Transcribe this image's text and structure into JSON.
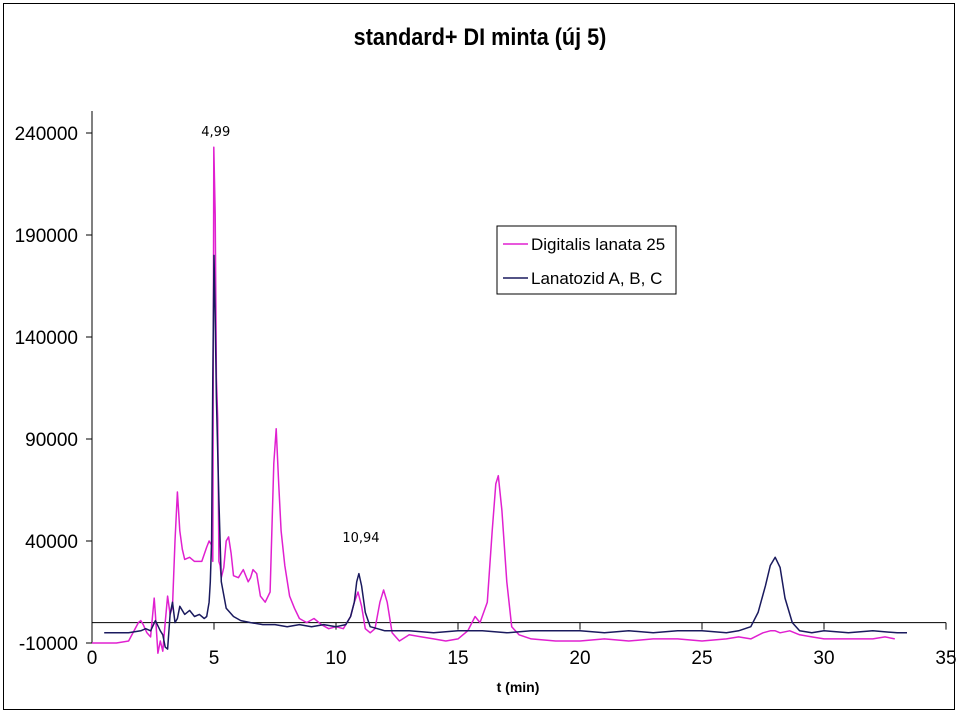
{
  "chart_data": {
    "type": "line",
    "title": "standard+ DI minta (új 5)",
    "xlabel": "t (min)",
    "ylabel": "",
    "xlim": [
      0,
      35
    ],
    "ylim": [
      -10000,
      240000
    ],
    "x_ticks": [
      "0",
      "5",
      "10",
      "15",
      "20",
      "25",
      "30",
      "35"
    ],
    "y_ticks": [
      "-10000",
      "40000",
      "90000",
      "140000",
      "190000",
      "240000"
    ],
    "grid": false,
    "legend_position": "top-right",
    "annotations": [
      {
        "text": "4,99",
        "x": 4.99,
        "y": 239000
      },
      {
        "text": "10,94",
        "x": 10.94,
        "y": 40000
      }
    ],
    "series": [
      {
        "name": "Digitalis lanata 25",
        "color": "#e020d0",
        "x": [
          0,
          0.5,
          1.0,
          1.5,
          1.9,
          2.0,
          2.1,
          2.25,
          2.4,
          2.55,
          2.6,
          2.7,
          2.8,
          2.9,
          3.0,
          3.1,
          3.2,
          3.3,
          3.4,
          3.5,
          3.6,
          3.7,
          3.8,
          4.0,
          4.2,
          4.5,
          4.7,
          4.8,
          4.9,
          4.95,
          4.99,
          5.05,
          5.1,
          5.15,
          5.2,
          5.25,
          5.3,
          5.4,
          5.5,
          5.6,
          5.7,
          5.8,
          6.0,
          6.2,
          6.4,
          6.5,
          6.6,
          6.75,
          6.9,
          7.1,
          7.3,
          7.45,
          7.55,
          7.65,
          7.75,
          7.9,
          8.1,
          8.3,
          8.5,
          8.8,
          9.1,
          9.4,
          9.7,
          10.0,
          10.3,
          10.6,
          10.75,
          10.9,
          11.05,
          11.2,
          11.4,
          11.6,
          11.8,
          11.95,
          12.1,
          12.3,
          12.6,
          13.0,
          13.5,
          14.0,
          14.5,
          15.0,
          15.4,
          15.7,
          15.9,
          16.2,
          16.4,
          16.55,
          16.65,
          16.8,
          17.0,
          17.2,
          17.5,
          18.0,
          19.0,
          20.0,
          21.0,
          22.0,
          23.0,
          24.0,
          25.0,
          26.0,
          26.5,
          27.0,
          27.5,
          27.8,
          28.0,
          28.2,
          28.6,
          29.0,
          29.5,
          30.0,
          31.0,
          32.0,
          32.5,
          32.9
        ],
        "values": [
          -10000,
          -10000,
          -10000,
          -9000,
          0,
          1000,
          -1000,
          -5000,
          -7000,
          12000,
          4000,
          -15000,
          -9000,
          -14000,
          0,
          13000,
          4000,
          8000,
          40000,
          64000,
          45000,
          36000,
          31000,
          32000,
          30000,
          30000,
          37000,
          40000,
          38000,
          30000,
          233000,
          200000,
          120000,
          100000,
          30000,
          28000,
          22000,
          27000,
          40000,
          42000,
          34000,
          23000,
          22000,
          26000,
          20000,
          22000,
          26000,
          24000,
          13000,
          10000,
          15000,
          78000,
          95000,
          68000,
          45000,
          28000,
          13000,
          7000,
          2000,
          0,
          2000,
          -1000,
          -3000,
          -2000,
          -3000,
          3000,
          10000,
          15000,
          8000,
          -3000,
          -5000,
          -3000,
          10000,
          16000,
          10000,
          -5000,
          -9000,
          -6000,
          -7000,
          -8000,
          -9000,
          -8000,
          -4000,
          3000,
          0,
          10000,
          45000,
          68000,
          72000,
          55000,
          20000,
          -2000,
          -6000,
          -8000,
          -9000,
          -9000,
          -8000,
          -9000,
          -8000,
          -8000,
          -9000,
          -8000,
          -7000,
          -8000,
          -5000,
          -4000,
          -4000,
          -5000,
          -4000,
          -6000,
          -7000,
          -8000,
          -8000,
          -8000,
          -7000,
          -8000
        ]
      },
      {
        "name": "Lanatozid A, B, C",
        "color": "#1a1a5e",
        "x": [
          0.5,
          1.0,
          1.5,
          2.0,
          2.2,
          2.4,
          2.6,
          2.8,
          2.9,
          3.0,
          3.1,
          3.2,
          3.3,
          3.4,
          3.5,
          3.6,
          3.8,
          4.0,
          4.2,
          4.4,
          4.6,
          4.7,
          4.8,
          4.85,
          4.9,
          4.95,
          5.0,
          5.05,
          5.1,
          5.2,
          5.3,
          5.5,
          5.8,
          6.1,
          6.5,
          7.0,
          7.5,
          8.0,
          8.5,
          9.0,
          9.5,
          10.0,
          10.4,
          10.6,
          10.75,
          10.85,
          10.94,
          11.05,
          11.2,
          11.4,
          11.7,
          12.0,
          13.0,
          14.0,
          15.0,
          16.0,
          17.0,
          18.0,
          19.0,
          20.0,
          21.0,
          22.0,
          23.0,
          24.0,
          25.0,
          26.0,
          26.5,
          27.0,
          27.3,
          27.6,
          27.8,
          28.0,
          28.2,
          28.4,
          28.7,
          29.0,
          29.5,
          30.0,
          31.0,
          32.0,
          33.0,
          33.4
        ],
        "values": [
          -5000,
          -5000,
          -5000,
          -4000,
          -3000,
          -4000,
          1000,
          -4000,
          -6000,
          -12000,
          -13000,
          4000,
          10000,
          0,
          2000,
          8000,
          4000,
          6000,
          3000,
          4000,
          2000,
          3000,
          10000,
          20000,
          40000,
          120000,
          180000,
          150000,
          110000,
          60000,
          20000,
          7000,
          3000,
          1000,
          0,
          -1000,
          -1000,
          -2000,
          -1000,
          -2000,
          -1000,
          -2000,
          -1000,
          3000,
          10000,
          20000,
          24000,
          18000,
          5000,
          -2000,
          -3000,
          -4000,
          -4000,
          -5000,
          -4000,
          -4000,
          -5000,
          -4000,
          -4000,
          -4000,
          -5000,
          -4000,
          -5000,
          -4000,
          -4000,
          -5000,
          -4000,
          -2000,
          5000,
          18000,
          28000,
          32000,
          27000,
          12000,
          0,
          -4000,
          -5000,
          -4000,
          -5000,
          -4000,
          -5000,
          -5000
        ]
      }
    ]
  }
}
